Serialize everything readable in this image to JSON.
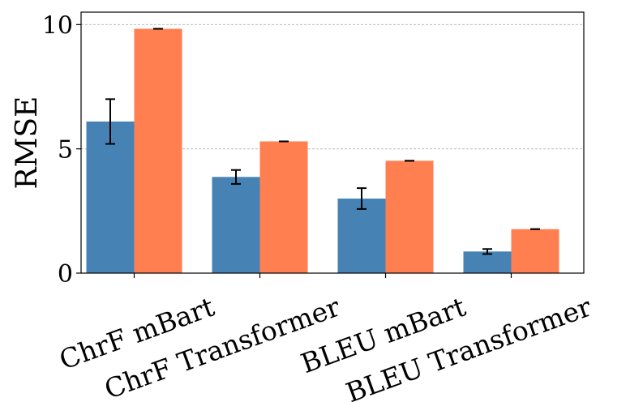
{
  "chart_data": {
    "type": "bar",
    "title": "",
    "xlabel": "",
    "ylabel": "RMSE",
    "ylim": [
      0,
      10.5
    ],
    "yticks": [
      0,
      5,
      10
    ],
    "ytick_labels": [
      "0",
      "5",
      "10"
    ],
    "grid": "horizontal dashed",
    "categories": [
      "ChrF mBart",
      "ChrF Transformer",
      "BLEU mBart",
      "BLEU Transformer"
    ],
    "series": [
      {
        "color": "#4682B4",
        "values": [
          6.1,
          3.87,
          3.0,
          0.87
        ],
        "errors": [
          0.9,
          0.28,
          0.42,
          0.1
        ]
      },
      {
        "color": "#FF7F50",
        "values": [
          9.83,
          5.3,
          4.52,
          1.77
        ],
        "errors": [
          0.0,
          0.0,
          0.0,
          0.0
        ]
      }
    ]
  }
}
